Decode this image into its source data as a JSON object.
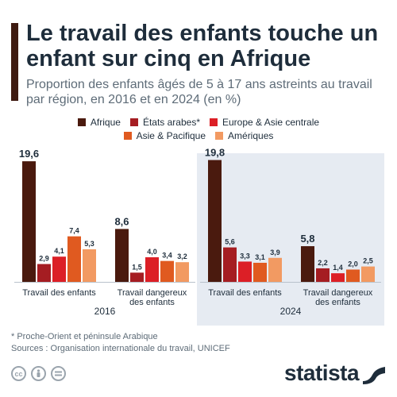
{
  "header": {
    "title": "Le travail des enfants touche un enfant sur cinq en Afrique",
    "subtitle": "Proportion des enfants âgés de 5 à 17 ans astreints au travail par région, en 2016 et en 2024 (en %)"
  },
  "colors": {
    "accent": "#3e1a10",
    "highlight_bg": "#e6ebf2"
  },
  "chart_data": {
    "type": "bar",
    "series": [
      {
        "name": "Afrique",
        "color": "#4a1a0e"
      },
      {
        "name": "États arabes*",
        "color": "#a51d22"
      },
      {
        "name": "Europe & Asie centrale",
        "color": "#dc1f26"
      },
      {
        "name": "Asie & Pacifique",
        "color": "#e05a20"
      },
      {
        "name": "Amériques",
        "color": "#f29a62"
      }
    ],
    "groups": [
      {
        "year": "2016",
        "highlighted": false,
        "categories": [
          {
            "label": [
              "Travail des enfants"
            ],
            "values": [
              19.6,
              2.9,
              4.1,
              7.4,
              5.3
            ],
            "labels": [
              "19,6",
              "2,9",
              "4,1",
              "7,4",
              "5,3"
            ]
          },
          {
            "label": [
              "Travail dangereux",
              "des enfants"
            ],
            "values": [
              8.6,
              1.5,
              4.0,
              3.4,
              3.2
            ],
            "labels": [
              "8,6",
              "1,5",
              "4,0",
              "3,4",
              "3,2"
            ]
          }
        ]
      },
      {
        "year": "2024",
        "highlighted": true,
        "categories": [
          {
            "label": [
              "Travail des enfants"
            ],
            "values": [
              19.8,
              5.6,
              3.3,
              3.1,
              3.9
            ],
            "labels": [
              "19,8",
              "5,6",
              "3,3",
              "3,1",
              "3,9"
            ]
          },
          {
            "label": [
              "Travail dangereux",
              "des enfants"
            ],
            "values": [
              5.8,
              2.2,
              1.4,
              2.0,
              2.5
            ],
            "labels": [
              "5,8",
              "2,2",
              "1,4",
              "2,0",
              "2,5"
            ]
          }
        ]
      }
    ],
    "ylim": [
      0,
      20
    ]
  },
  "footer": {
    "footnote": "* Proche-Orient et péninsule Arabique",
    "sources": "Sources : Organisation internationale du travail, UNICEF",
    "license_icons": [
      "cc-icon",
      "by-icon",
      "equals-icon"
    ],
    "brand": "statista"
  }
}
